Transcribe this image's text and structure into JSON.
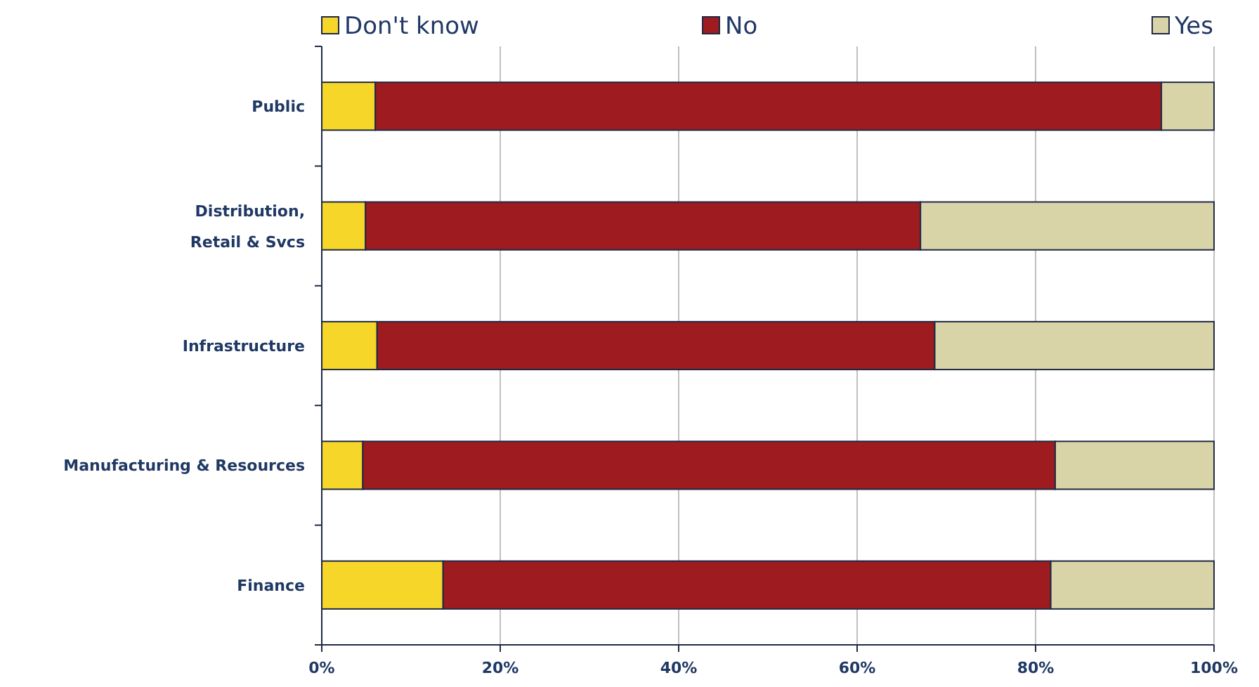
{
  "chart_data": {
    "type": "bar",
    "orientation": "horizontal",
    "stacked": true,
    "categories": [
      "Public",
      "Distribution, Retail & Svcs",
      "Infrastructure",
      "Manufacturing & Resources",
      "Finance"
    ],
    "series": [
      {
        "name": "Don't know",
        "color": "#f7d62a",
        "values": [
          6,
          4.9,
          6.2,
          4.6,
          13.6
        ]
      },
      {
        "name": "No",
        "color": "#9e1b20",
        "values": [
          88.1,
          62.2,
          62.5,
          77.6,
          68.1
        ]
      },
      {
        "name": "Yes",
        "color": "#d9d3a8",
        "values": [
          5.9,
          32.9,
          31.3,
          17.8,
          18.3
        ]
      }
    ],
    "xlim": [
      0,
      100
    ],
    "xticks": [
      {
        "value": 0,
        "label": "0%"
      },
      {
        "value": 20,
        "label": "20%"
      },
      {
        "value": 40,
        "label": "40%"
      },
      {
        "value": 60,
        "label": "60%"
      },
      {
        "value": 80,
        "label": "80%"
      },
      {
        "value": 100,
        "label": "100%"
      }
    ],
    "grid": "x",
    "legend": "top"
  }
}
